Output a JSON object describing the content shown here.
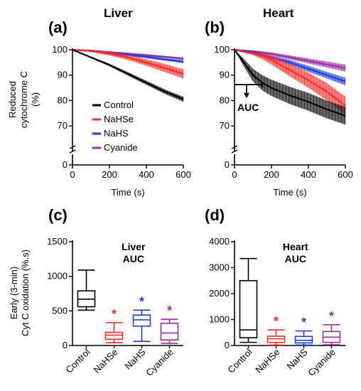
{
  "colors": {
    "Control": "#000000",
    "NaHSe": "#ff2a2a",
    "NaHS": "#1f3fd6",
    "Cyanide": "#9b2fa6"
  },
  "chart_data": [
    {
      "type": "line",
      "panel": "(a)",
      "title": "Liver",
      "xlabel": "Time (s)",
      "ylabel": "Reduced cytochrome C (%)",
      "xlim": [
        0,
        600
      ],
      "ylim": [
        65,
        100
      ],
      "xticks": [
        0,
        200,
        400,
        600
      ],
      "yticks": [
        100,
        90,
        80,
        70
      ],
      "ytick_labels": [
        "100",
        "90",
        "80",
        "70"
      ],
      "y_axis_break": true,
      "zero_label": "0",
      "legend": [
        "Control",
        "NaHSe",
        "NaHS",
        "Cyanide"
      ],
      "series": [
        {
          "name": "Control",
          "x": [
            0,
            100,
            200,
            300,
            400,
            500,
            600
          ],
          "y": [
            100,
            97,
            94,
            90.5,
            87,
            83.5,
            80.5
          ],
          "err": [
            0,
            0.3,
            0.5,
            0.7,
            0.8,
            0.9,
            1.0
          ]
        },
        {
          "name": "NaHSe",
          "x": [
            0,
            100,
            200,
            300,
            400,
            500,
            600
          ],
          "y": [
            100,
            99.5,
            98.5,
            97,
            95,
            92.8,
            90.5
          ],
          "err": [
            0,
            0.4,
            0.7,
            1.0,
            1.3,
            1.6,
            1.8
          ]
        },
        {
          "name": "NaHS",
          "x": [
            0,
            100,
            200,
            300,
            400,
            500,
            600
          ],
          "y": [
            100,
            99.5,
            98.8,
            98,
            97.2,
            96.2,
            95.3
          ],
          "err": [
            0,
            0.2,
            0.3,
            0.4,
            0.5,
            0.5,
            0.6
          ]
        },
        {
          "name": "Cyanide",
          "x": [
            0,
            100,
            200,
            300,
            400,
            500,
            600
          ],
          "y": [
            100,
            99.7,
            99.1,
            98.5,
            97.9,
            97.2,
            96.5
          ],
          "err": [
            0,
            0.2,
            0.3,
            0.3,
            0.4,
            0.4,
            0.5
          ]
        }
      ]
    },
    {
      "type": "line",
      "panel": "(b)",
      "title": "Heart",
      "xlabel": "Time (s)",
      "ylabel": "",
      "xlim": [
        0,
        600
      ],
      "ylim": [
        65,
        100
      ],
      "xticks": [
        0,
        200,
        400,
        600
      ],
      "yticks": [
        100,
        90,
        80,
        70
      ],
      "ytick_labels": [
        "100",
        "90",
        "80",
        "70"
      ],
      "y_axis_break": true,
      "zero_label": "0",
      "annotation": "AUC",
      "auc_bracket_x": [
        0,
        150
      ],
      "series": [
        {
          "name": "Control",
          "x": [
            0,
            50,
            100,
            150,
            200,
            300,
            400,
            500,
            600
          ],
          "y": [
            100,
            95,
            90,
            87,
            85,
            82,
            79.5,
            76.5,
            74
          ],
          "err": [
            0,
            1.5,
            2.5,
            3.0,
            3.2,
            3.4,
            3.5,
            3.5,
            3.5
          ]
        },
        {
          "name": "NaHSe",
          "x": [
            0,
            100,
            150,
            200,
            300,
            400,
            500,
            600
          ],
          "y": [
            100,
            98.5,
            97.5,
            96,
            92,
            88,
            83.5,
            78
          ],
          "err": [
            0,
            0.6,
            1.2,
            1.8,
            2.5,
            3.0,
            3.4,
            3.6
          ]
        },
        {
          "name": "NaHS",
          "x": [
            0,
            100,
            200,
            300,
            400,
            500,
            600
          ],
          "y": [
            100,
            99,
            97,
            95,
            92.5,
            90,
            87.5
          ],
          "err": [
            0,
            0.5,
            0.8,
            1.0,
            1.2,
            1.3,
            1.5
          ]
        },
        {
          "name": "Cyanide",
          "x": [
            0,
            100,
            200,
            300,
            400,
            500,
            600
          ],
          "y": [
            100,
            99.4,
            98.4,
            97,
            95.6,
            94.2,
            92.8
          ],
          "err": [
            0,
            0.4,
            0.6,
            0.8,
            1.0,
            1.2,
            1.4
          ]
        }
      ]
    },
    {
      "type": "box",
      "panel": "(c)",
      "title": "Liver AUC",
      "title_lines": [
        "Liver",
        "AUC"
      ],
      "ylabel": "Early (3-min) Cyt C oxidation (%.s)",
      "ylabel_lines": [
        "Early (3-min)",
        "Cyt C oxidation (%.s)"
      ],
      "ylim": [
        0,
        1500
      ],
      "yticks": [
        0,
        500,
        1000,
        1500
      ],
      "categories": [
        "Control",
        "NaHSe",
        "NaHS",
        "Cyanide"
      ],
      "boxes": [
        {
          "name": "Control",
          "min": 510,
          "q1": 560,
          "median": 670,
          "q3": 790,
          "max": 1090
        },
        {
          "name": "NaHSe",
          "min": 40,
          "q1": 90,
          "median": 150,
          "q3": 190,
          "max": 330
        },
        {
          "name": "NaHS",
          "min": 60,
          "q1": 280,
          "median": 370,
          "q3": 440,
          "max": 510
        },
        {
          "name": "Cyanide",
          "min": 30,
          "q1": 80,
          "median": 180,
          "q3": 320,
          "max": 380
        }
      ],
      "significance": [
        "",
        "*",
        "*",
        "*"
      ]
    },
    {
      "type": "box",
      "panel": "(d)",
      "title": "Heart AUC",
      "title_lines": [
        "Heart",
        "AUC"
      ],
      "ylabel": "",
      "ylim": [
        0,
        4000
      ],
      "yticks": [
        0,
        1000,
        2000,
        3000,
        4000
      ],
      "categories": [
        "Control",
        "NaHSe",
        "NaHS",
        "Cyanide"
      ],
      "boxes": [
        {
          "name": "Control",
          "min": 120,
          "q1": 300,
          "median": 600,
          "q3": 2500,
          "max": 3350
        },
        {
          "name": "NaHSe",
          "min": 20,
          "q1": 120,
          "median": 260,
          "q3": 360,
          "max": 600
        },
        {
          "name": "NaHS",
          "min": 20,
          "q1": 100,
          "median": 200,
          "q3": 350,
          "max": 560
        },
        {
          "name": "Cyanide",
          "min": 30,
          "q1": 120,
          "median": 320,
          "q3": 540,
          "max": 800
        }
      ],
      "significance": [
        "",
        "*",
        "*",
        "*"
      ]
    }
  ]
}
